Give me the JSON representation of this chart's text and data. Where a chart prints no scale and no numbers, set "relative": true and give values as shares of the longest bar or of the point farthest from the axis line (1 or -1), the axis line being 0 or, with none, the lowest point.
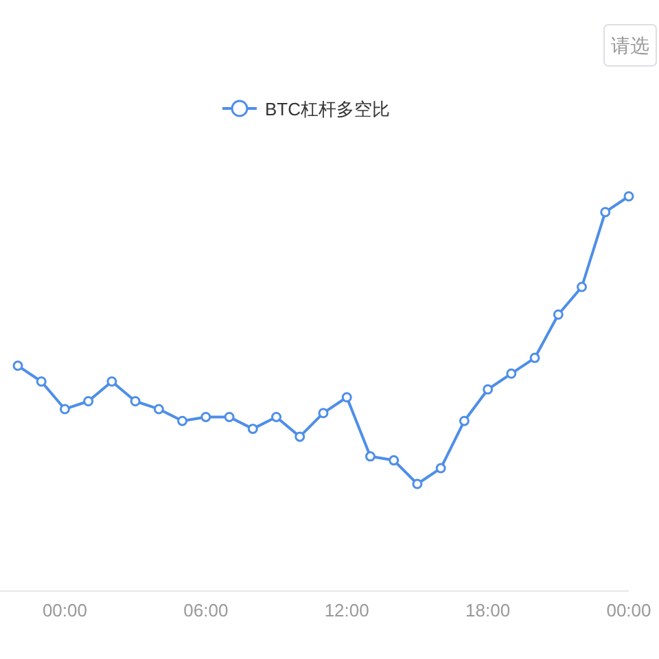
{
  "chart_data": {
    "type": "line",
    "relative": true,
    "categories": [
      null,
      null,
      "00:00",
      null,
      null,
      null,
      null,
      null,
      "06:00",
      null,
      null,
      null,
      null,
      null,
      "12:00",
      null,
      null,
      null,
      null,
      null,
      "18:00",
      null,
      null,
      null,
      null,
      null,
      "00:00"
    ],
    "series": [
      {
        "name": "BTC杠杆多空比",
        "color": "#4e8ee9",
        "values": [
          0.57,
          0.53,
          0.46,
          0.48,
          0.53,
          0.48,
          0.46,
          0.43,
          0.44,
          0.44,
          0.41,
          0.44,
          0.39,
          0.45,
          0.49,
          0.34,
          0.33,
          0.27,
          0.31,
          0.43,
          0.51,
          0.55,
          0.59,
          0.7,
          0.77,
          0.96,
          1.0
        ]
      }
    ],
    "marker": "circle",
    "legend": "top",
    "annotations": [
      "请选"
    ]
  }
}
